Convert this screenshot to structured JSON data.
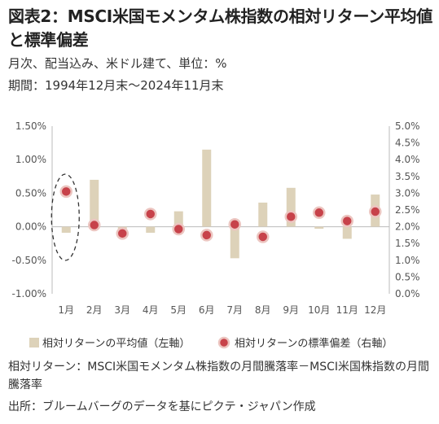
{
  "header": {
    "title": "図表2：MSCI米国モメンタム株指数の相対リターン平均値と標準偏差",
    "subtitle": "月次、配当込み、米ドル建て、単位：%",
    "period": "期間：1994年12月末～2024年11月末"
  },
  "footer": {
    "note": "相対リターン：MSCI米国モメンタム株指数の月間騰落率－MSCI米国株指数の月間騰落率",
    "source": "出所：ブルームバーグのデータを基にピクテ・ジャパン作成"
  },
  "colors": {
    "bar": "#ddd2b9",
    "dot_fill": "#c7424a",
    "dot_stroke": "#ecc5c0",
    "axis": "#bbbbbb",
    "highlight_ellipse": "#333333"
  },
  "chart_data": {
    "type": "bar",
    "categories": [
      "1月",
      "2月",
      "3月",
      "4月",
      "5月",
      "6月",
      "7月",
      "8月",
      "9月",
      "10月",
      "11月",
      "12月"
    ],
    "series": [
      {
        "name": "相対リターンの平均値（左軸）",
        "type": "bar",
        "axis": "left",
        "values": [
          -0.09,
          0.7,
          -0.04,
          -0.09,
          0.23,
          1.15,
          -0.47,
          0.36,
          0.58,
          -0.03,
          -0.18,
          0.48
        ]
      },
      {
        "name": "相対リターンの標準偏差（右軸）",
        "type": "scatter",
        "axis": "right",
        "values": [
          3.05,
          2.05,
          1.8,
          2.38,
          1.93,
          1.75,
          2.07,
          1.7,
          2.3,
          2.42,
          2.17,
          2.45
        ]
      }
    ],
    "left_axis": {
      "ylim": [
        -1.0,
        1.5
      ],
      "ticks": [
        -1.0,
        -0.5,
        0.0,
        0.5,
        1.0,
        1.5
      ],
      "tick_labels": [
        "-1.00%",
        "-0.50%",
        "0.00%",
        "0.50%",
        "1.00%",
        "1.50%"
      ]
    },
    "right_axis": {
      "ylim": [
        0.0,
        5.0
      ],
      "ticks": [
        0.0,
        0.5,
        1.0,
        1.5,
        2.0,
        2.5,
        3.0,
        3.5,
        4.0,
        4.5,
        5.0
      ],
      "tick_labels": [
        "0.0%",
        "0.5%",
        "1.0%",
        "1.5%",
        "2.0%",
        "2.5%",
        "3.0%",
        "3.5%",
        "4.0%",
        "4.5%",
        "5.0%"
      ]
    },
    "grid": false,
    "legend_position": "bottom",
    "annotations": [
      {
        "type": "dashed-ellipse",
        "category": "1月"
      }
    ]
  }
}
